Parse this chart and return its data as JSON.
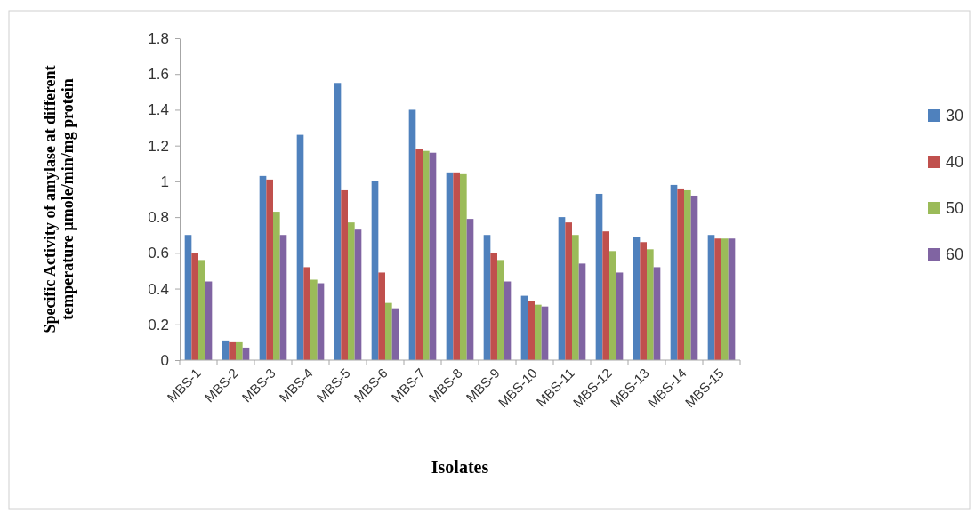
{
  "chart_data": {
    "type": "bar",
    "xlabel": "Isolates",
    "ylabel": "Specific Activity of amylase at different temperature µmole/min/mg protein",
    "categories": [
      "MBS-1",
      "MBS-2",
      "MBS-3",
      "MBS-4",
      "MBS-5",
      "MBS-6",
      "MBS-7",
      "MBS-8",
      "MBS-9",
      "MBS-10",
      "MBS-11",
      "MBS-12",
      "MBS-13",
      "MBS-14",
      "MBS-15"
    ],
    "series": [
      {
        "name": "30",
        "color": "#4f81bd",
        "values": [
          0.7,
          0.11,
          1.03,
          1.26,
          1.55,
          1.0,
          1.4,
          1.05,
          0.7,
          0.36,
          0.8,
          0.93,
          0.69,
          0.98,
          0.7
        ]
      },
      {
        "name": "40",
        "color": "#c0504d",
        "values": [
          0.6,
          0.1,
          1.01,
          0.52,
          0.95,
          0.49,
          1.18,
          1.05,
          0.6,
          0.33,
          0.77,
          0.72,
          0.66,
          0.96,
          0.68
        ]
      },
      {
        "name": "50",
        "color": "#9bbb59",
        "values": [
          0.56,
          0.1,
          0.83,
          0.45,
          0.77,
          0.32,
          1.17,
          1.04,
          0.56,
          0.31,
          0.7,
          0.61,
          0.62,
          0.95,
          0.68
        ]
      },
      {
        "name": "60",
        "color": "#8064a2",
        "values": [
          0.44,
          0.07,
          0.7,
          0.43,
          0.73,
          0.29,
          1.16,
          0.79,
          0.44,
          0.3,
          0.54,
          0.49,
          0.52,
          0.92,
          0.68
        ]
      }
    ],
    "ylim": [
      0,
      1.8
    ],
    "yticks": [
      0,
      0.2,
      0.4,
      0.6,
      0.8,
      1,
      1.2,
      1.4,
      1.6,
      1.8
    ],
    "legend": "right"
  }
}
